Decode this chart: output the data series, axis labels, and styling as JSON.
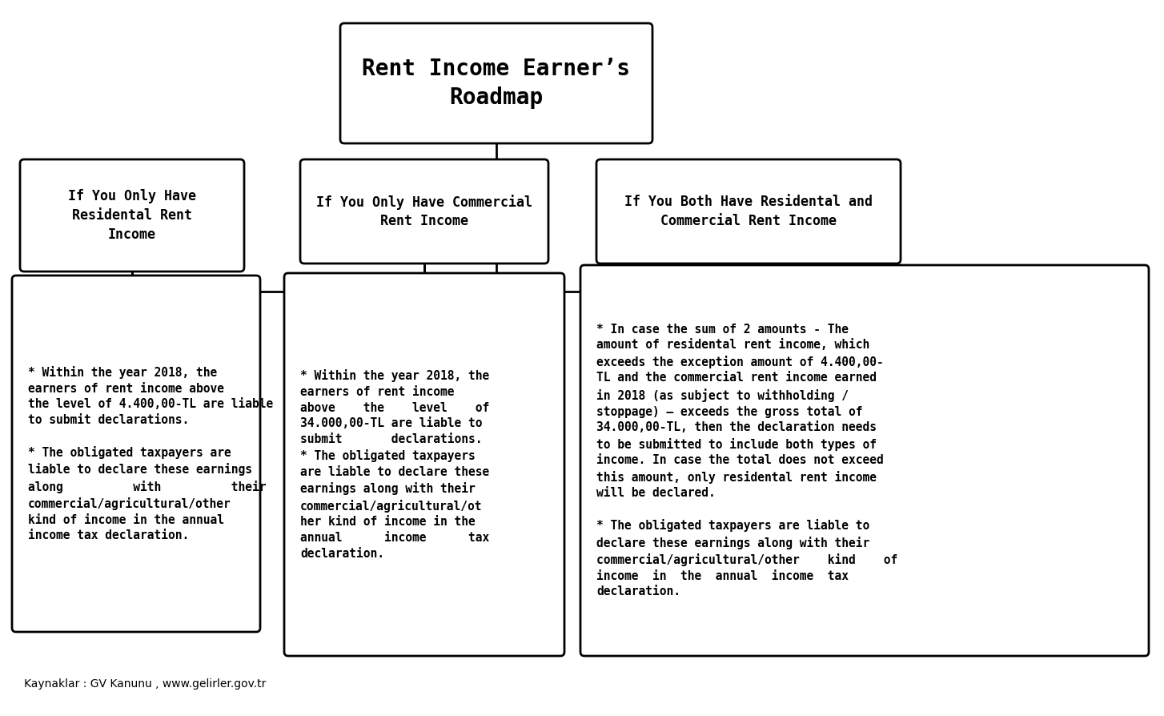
{
  "title": "Rent Income Earner’s\nRoadmap",
  "box1_header": "If You Only Have\nResidental Rent\nIncome",
  "box2_header": "If You Only Have Commercial\nRent Income",
  "box3_header": "If You Both Have Residental and\nCommercial Rent Income",
  "box1_text": "* Within the year 2018, the\nearners of rent income above\nthe level of 4.400,00-TL are liable\nto submit declarations.\n\n* The obligated taxpayers are\nliable to declare these earnings\nalong          with          their\ncommercial/agricultural/other\nkind of income in the annual\nincome tax declaration.",
  "box2_text": "* Within the year 2018, the\nearners of rent income\nabove    the    level    of\n34.000,00-TL are liable to\nsubmit       declarations.\n* The obligated taxpayers\nare liable to declare these\nearnings along with their\ncommercial/agricultural/ot\nher kind of income in the\nannual      income      tax\ndeclaration.",
  "box3_text": "* In case the sum of 2 amounts - The\namount of residental rent income, which\nexceeds the exception amount of 4.400,00-\nTL and the commercial rent income earned\nin 2018 (as subject to withholding /\nstoppage) – exceeds the gross total of\n34.000,00-TL, then the declaration needs\nto be submitted to include both types of\nincome. In case the total does not exceed\nthis amount, only residental rent income\nwill be declared.\n\n* The obligated taxpayers are liable to\ndeclare these earnings along with their\ncommercial/agricultural/other    kind    of\nincome  in  the  annual  income  tax\ndeclaration.",
  "footer": "Kaynaklar : GV Kanunu , www.gelirler.gov.tr",
  "bg_color": "#ffffff",
  "box_color": "#ffffff",
  "border_color": "#000000",
  "text_color": "#000000"
}
